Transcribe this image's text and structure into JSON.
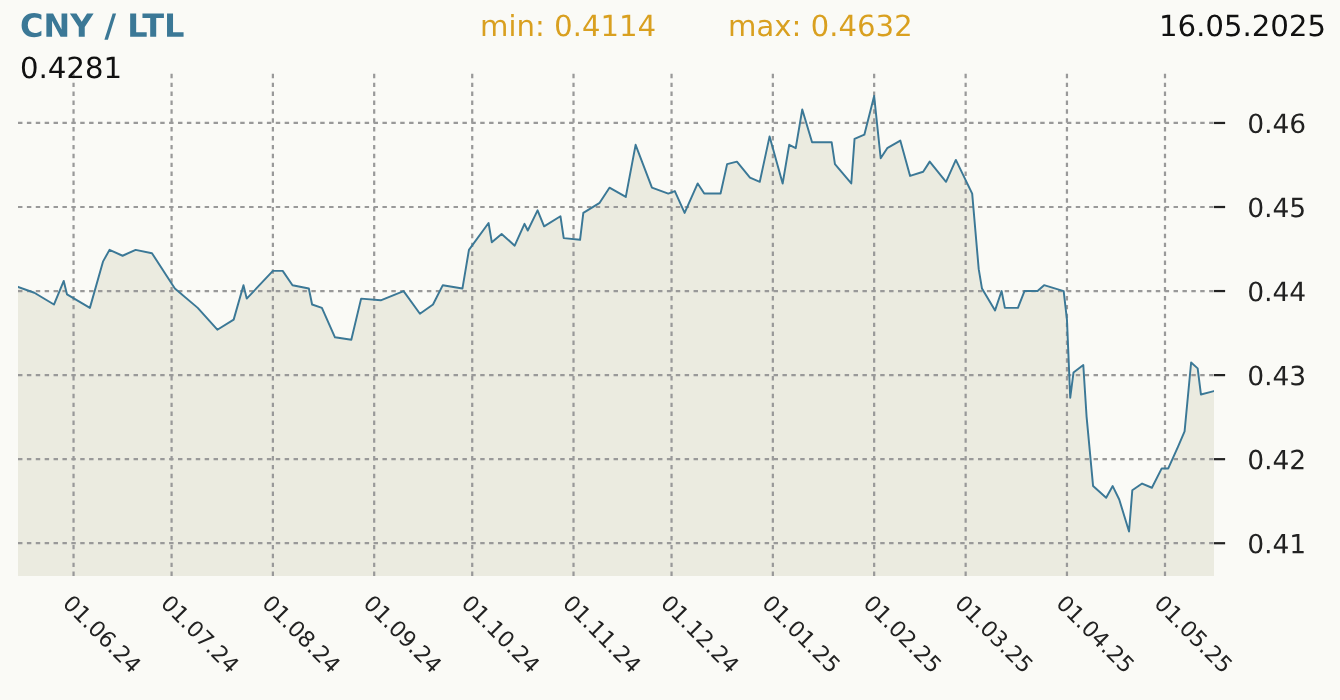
{
  "chart_data": {
    "type": "area",
    "title": "CNY / LTL",
    "annotations": [
      "min: 0.4114",
      "max: 0.4632",
      "16.05.2025",
      "0.4281"
    ],
    "x": [
      "2024-05-15",
      "2024-05-20",
      "2024-05-26",
      "2024-05-29",
      "2024-05-30",
      "2024-06-06",
      "2024-06-10",
      "2024-06-12",
      "2024-06-16",
      "2024-06-20",
      "2024-06-25",
      "2024-07-02",
      "2024-07-09",
      "2024-07-15",
      "2024-07-20",
      "2024-07-23",
      "2024-07-24",
      "2024-08-01",
      "2024-08-04",
      "2024-08-07",
      "2024-08-12",
      "2024-08-13",
      "2024-08-16",
      "2024-08-20",
      "2024-08-25",
      "2024-08-28",
      "2024-09-03",
      "2024-09-10",
      "2024-09-15",
      "2024-09-19",
      "2024-09-22",
      "2024-09-28",
      "2024-09-30",
      "2024-10-06",
      "2024-10-07",
      "2024-10-10",
      "2024-10-14",
      "2024-10-17",
      "2024-10-18",
      "2024-10-21",
      "2024-10-23",
      "2024-10-28",
      "2024-10-29",
      "2024-11-03",
      "2024-11-04",
      "2024-11-09",
      "2024-11-12",
      "2024-11-17",
      "2024-11-20",
      "2024-11-25",
      "2024-11-30",
      "2024-12-02",
      "2024-12-05",
      "2024-12-09",
      "2024-12-11",
      "2024-12-16",
      "2024-12-18",
      "2024-12-21",
      "2024-12-25",
      "2024-12-28",
      "2024-12-31",
      "2025-01-04",
      "2025-01-06",
      "2025-01-08",
      "2025-01-10",
      "2025-01-13",
      "2025-01-19",
      "2025-01-20",
      "2025-01-25",
      "2025-01-26",
      "2025-01-29",
      "2025-02-01",
      "2025-02-03",
      "2025-02-05",
      "2025-02-09",
      "2025-02-12",
      "2025-02-16",
      "2025-02-18",
      "2025-02-23",
      "2025-02-26",
      "2025-03-03",
      "2025-03-05",
      "2025-03-06",
      "2025-03-10",
      "2025-03-12",
      "2025-03-13",
      "2025-03-17",
      "2025-03-19",
      "2025-03-23",
      "2025-03-25",
      "2025-03-31",
      "2025-04-01",
      "2025-04-02",
      "2025-04-03",
      "2025-04-06",
      "2025-04-07",
      "2025-04-09",
      "2025-04-13",
      "2025-04-15",
      "2025-04-17",
      "2025-04-20",
      "2025-04-21",
      "2025-04-24",
      "2025-04-27",
      "2025-04-30",
      "2025-05-02",
      "2025-05-05",
      "2025-05-07",
      "2025-05-09",
      "2025-05-11",
      "2025-05-12",
      "2025-05-16"
    ],
    "series": [
      {
        "color": "#3b7896",
        "values": [
          0.4405,
          0.4398,
          0.4384,
          0.4412,
          0.4396,
          0.438,
          0.4435,
          0.4449,
          0.4442,
          0.4449,
          0.4445,
          0.4403,
          0.438,
          0.4354,
          0.4366,
          0.4407,
          0.4391,
          0.4424,
          0.4424,
          0.4407,
          0.4403,
          0.4384,
          0.438,
          0.4345,
          0.4342,
          0.4391,
          0.4389,
          0.44,
          0.4373,
          0.4384,
          0.4407,
          0.4403,
          0.4449,
          0.4481,
          0.4458,
          0.4468,
          0.4454,
          0.448,
          0.4472,
          0.4496,
          0.4477,
          0.4489,
          0.4463,
          0.4461,
          0.4493,
          0.4505,
          0.4523,
          0.4512,
          0.4574,
          0.4523,
          0.4516,
          0.4519,
          0.4493,
          0.4528,
          0.4516,
          0.4516,
          0.4551,
          0.4554,
          0.4535,
          0.453,
          0.4584,
          0.4528,
          0.4574,
          0.457,
          0.4616,
          0.4577,
          0.4577,
          0.4551,
          0.4528,
          0.4581,
          0.4586,
          0.4632,
          0.4558,
          0.457,
          0.4579,
          0.4537,
          0.4542,
          0.4554,
          0.453,
          0.4556,
          0.4516,
          0.4426,
          0.4403,
          0.4377,
          0.44,
          0.438,
          0.438,
          0.44,
          0.44,
          0.4407,
          0.44,
          0.4366,
          0.4273,
          0.4303,
          0.4312,
          0.4251,
          0.4168,
          0.4154,
          0.4168,
          0.4152,
          0.4114,
          0.4163,
          0.4171,
          0.4166,
          0.4189,
          0.4189,
          0.4215,
          0.4233,
          0.4315,
          0.4308,
          0.4277,
          0.4281
        ]
      }
    ],
    "xlim": [
      "2024-05-15",
      "2025-05-16"
    ],
    "xticks": [
      {
        "value": "2024-06-01",
        "label": "01.06.24"
      },
      {
        "value": "2024-07-01",
        "label": "01.07.24"
      },
      {
        "value": "2024-08-01",
        "label": "01.08.24"
      },
      {
        "value": "2024-09-01",
        "label": "01.09.24"
      },
      {
        "value": "2024-10-01",
        "label": "01.10.24"
      },
      {
        "value": "2024-11-01",
        "label": "01.11.24"
      },
      {
        "value": "2024-12-01",
        "label": "01.12.24"
      },
      {
        "value": "2025-01-01",
        "label": "01.01.25"
      },
      {
        "value": "2025-02-01",
        "label": "01.02.25"
      },
      {
        "value": "2025-03-01",
        "label": "01.03.25"
      },
      {
        "value": "2025-04-01",
        "label": "01.04.25"
      },
      {
        "value": "2025-05-01",
        "label": "01.05.25"
      }
    ],
    "ylim": [
      0.4061,
      0.4663
    ],
    "yticks": [
      0.41,
      0.42,
      0.43,
      0.44,
      0.45,
      0.46
    ],
    "grid": true,
    "legend": false
  }
}
